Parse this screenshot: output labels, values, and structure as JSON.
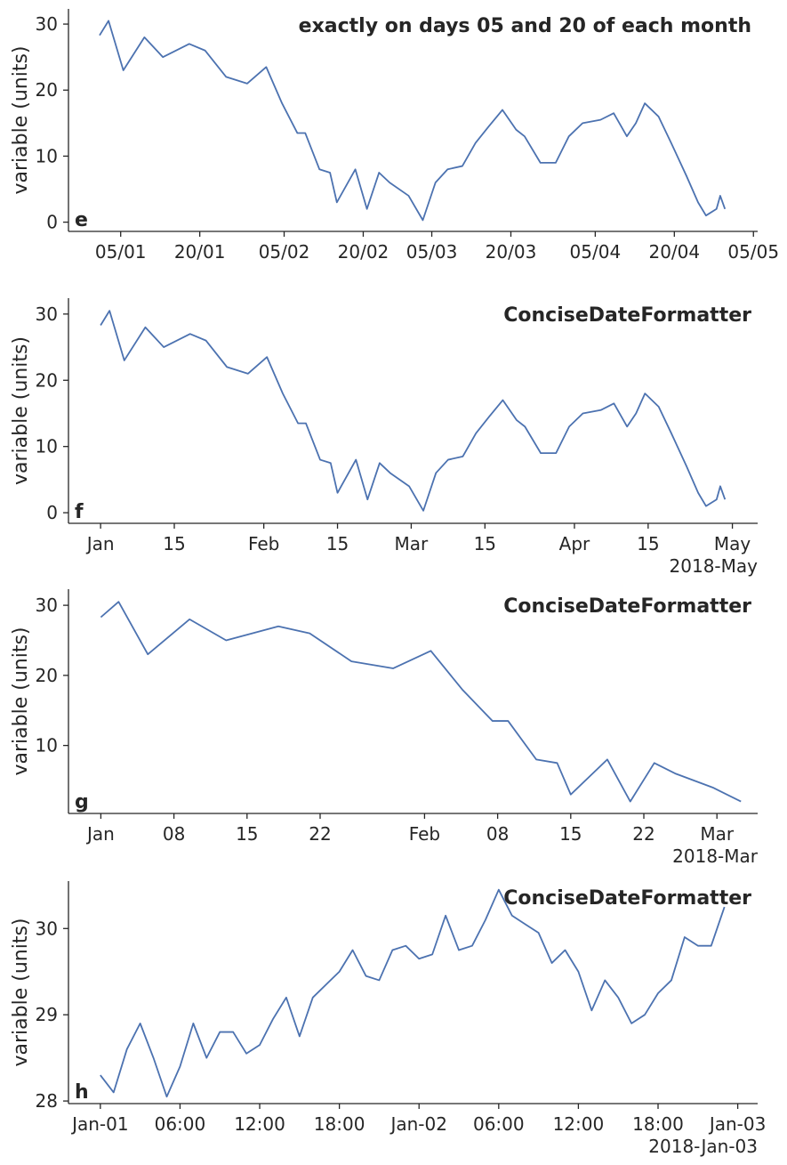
{
  "chart_data": [
    {
      "type": "line",
      "title": "exactly on days 05 and 20 of each month",
      "panel_label": "e",
      "ylabel": "variable (units)",
      "color": "#4c72b0",
      "x": [
        0,
        1.7,
        4.5,
        8.5,
        12,
        17,
        20,
        24,
        28,
        31.6,
        34.6,
        37.5,
        39,
        41.7,
        43.7,
        45,
        48.5,
        50.7,
        53,
        55,
        58.6,
        61.3,
        63.7,
        66,
        68.8,
        71.3,
        73.8,
        76.4,
        79,
        80.6,
        83.6,
        86.5,
        89,
        91.6,
        95,
        97.5,
        100,
        101.7,
        103.4,
        106,
        108.4,
        111.3,
        113.5,
        115,
        117,
        117.7,
        118.6
      ],
      "values": [
        28.3,
        30.5,
        23,
        28,
        25,
        27,
        26,
        22,
        21,
        23.5,
        18,
        13.5,
        13.5,
        8,
        7.5,
        3,
        8,
        2,
        7.5,
        6,
        4,
        0.3,
        6,
        8,
        8.5,
        12,
        14.5,
        17,
        14,
        13,
        9,
        9,
        13,
        15,
        15.5,
        16.5,
        13,
        15,
        18,
        16,
        12,
        7,
        3,
        1,
        2,
        4,
        2
      ],
      "xlim": [
        -5.9,
        124.8
      ],
      "xticks": [
        {
          "value": 4,
          "label": "05/01"
        },
        {
          "value": 19,
          "label": "20/01"
        },
        {
          "value": 35,
          "label": "05/02"
        },
        {
          "value": 50,
          "label": "20/02"
        },
        {
          "value": 63,
          "label": "05/03"
        },
        {
          "value": 78,
          "label": "20/03"
        },
        {
          "value": 94,
          "label": "05/04"
        },
        {
          "value": 109,
          "label": "20/04"
        },
        {
          "value": 124,
          "label": "05/05"
        }
      ],
      "ylim": [
        -1.4,
        32.3
      ],
      "yticks": [
        0,
        10,
        20,
        30
      ]
    },
    {
      "type": "line",
      "title": "ConciseDateFormatter",
      "panel_label": "f",
      "ylabel": "variable (units)",
      "color": "#4c72b0",
      "offset_label": "2018-May",
      "x": [
        0,
        1.7,
        4.5,
        8.5,
        12,
        17,
        20,
        24,
        28,
        31.6,
        34.6,
        37.5,
        39,
        41.7,
        43.7,
        45,
        48.5,
        50.7,
        53,
        55,
        58.6,
        61.3,
        63.7,
        66,
        68.8,
        71.3,
        73.8,
        76.4,
        79,
        80.6,
        83.6,
        86.5,
        89,
        91.6,
        95,
        97.5,
        100,
        101.7,
        103.4,
        106,
        108.4,
        111.3,
        113.5,
        115,
        117,
        117.7,
        118.6
      ],
      "values": [
        28.3,
        30.5,
        23,
        28,
        25,
        27,
        26,
        22,
        21,
        23.5,
        18,
        13.5,
        13.5,
        8,
        7.5,
        3,
        8,
        2,
        7.5,
        6,
        4,
        0.3,
        6,
        8,
        8.5,
        12,
        14.5,
        17,
        14,
        13,
        9,
        9,
        13,
        15,
        15.5,
        16.5,
        13,
        15,
        18,
        16,
        12,
        7,
        3,
        1,
        2,
        4,
        2
      ],
      "xlim": [
        -6.1,
        124.8
      ],
      "xticks": [
        {
          "value": 0,
          "label": "Jan"
        },
        {
          "value": 14,
          "label": "15"
        },
        {
          "value": 31,
          "label": "Feb"
        },
        {
          "value": 45,
          "label": "15"
        },
        {
          "value": 59,
          "label": "Mar"
        },
        {
          "value": 73,
          "label": "15"
        },
        {
          "value": 90,
          "label": "Apr"
        },
        {
          "value": 104,
          "label": "15"
        },
        {
          "value": 120,
          "label": "May"
        }
      ],
      "ylim": [
        -1.6,
        32.4
      ],
      "yticks": [
        0,
        10,
        20,
        30
      ]
    },
    {
      "type": "line",
      "title": "ConciseDateFormatter",
      "panel_label": "g",
      "ylabel": "variable (units)",
      "color": "#4c72b0",
      "offset_label": "2018-Mar",
      "x": [
        0,
        1.7,
        4.5,
        8.5,
        12,
        17,
        20,
        24,
        28,
        31.6,
        34.6,
        37.5,
        39,
        41.7,
        43.7,
        45,
        48.5,
        50.7,
        53,
        55,
        58.6,
        61.3
      ],
      "values": [
        28.3,
        30.5,
        23,
        28,
        25,
        27,
        26,
        22,
        21,
        23.5,
        18,
        13.5,
        13.5,
        8,
        7.5,
        3,
        8,
        2,
        7.5,
        6,
        4,
        2
      ],
      "xlim": [
        -3.1,
        62.9
      ],
      "xticks": [
        {
          "value": 0,
          "label": "Jan"
        },
        {
          "value": 7,
          "label": "08"
        },
        {
          "value": 14,
          "label": "15"
        },
        {
          "value": 21,
          "label": "22"
        },
        {
          "value": 31,
          "label": "Feb"
        },
        {
          "value": 38,
          "label": "08"
        },
        {
          "value": 45,
          "label": "15"
        },
        {
          "value": 52,
          "label": "22"
        },
        {
          "value": 59,
          "label": "Mar"
        }
      ],
      "ylim": [
        0.3,
        32.3
      ],
      "yticks": [
        10,
        20,
        30
      ]
    },
    {
      "type": "line",
      "title": "ConciseDateFormatter",
      "panel_label": "h",
      "ylabel": "variable (units)",
      "color": "#4c72b0",
      "offset_label": "2018-Jan-03",
      "x": [
        0,
        1,
        2,
        3,
        4,
        5,
        6,
        7,
        8,
        9,
        10,
        11,
        12,
        13,
        14,
        15,
        16,
        17,
        18,
        19,
        20,
        21,
        22,
        23,
        24,
        25,
        26,
        27,
        28,
        29,
        30,
        31,
        32,
        33,
        34,
        35,
        36,
        37,
        38,
        39,
        40,
        41,
        42,
        43,
        44,
        45,
        46,
        47
      ],
      "values": [
        28.3,
        28.1,
        28.6,
        28.9,
        28.5,
        28.05,
        28.4,
        28.9,
        28.5,
        28.8,
        28.8,
        28.55,
        28.65,
        28.95,
        29.2,
        28.75,
        29.2,
        29.35,
        29.5,
        29.75,
        29.45,
        29.4,
        29.75,
        29.8,
        29.65,
        29.7,
        30.15,
        29.75,
        29.8,
        30.1,
        30.45,
        30.15,
        30.05,
        29.95,
        29.6,
        29.75,
        29.5,
        29.05,
        29.4,
        29.2,
        28.9,
        29.0,
        29.25,
        29.4,
        29.9,
        29.8,
        29.8,
        30.25
      ],
      "xlim": [
        -2.4,
        49.5
      ],
      "xticks": [
        {
          "value": 0,
          "label": "Jan-01"
        },
        {
          "value": 6,
          "label": "06:00"
        },
        {
          "value": 12,
          "label": "12:00"
        },
        {
          "value": 18,
          "label": "18:00"
        },
        {
          "value": 24,
          "label": "Jan-02"
        },
        {
          "value": 30,
          "label": "06:00"
        },
        {
          "value": 36,
          "label": "12:00"
        },
        {
          "value": 42,
          "label": "18:00"
        },
        {
          "value": 48,
          "label": "Jan-03"
        }
      ],
      "ylim": [
        27.97,
        30.55
      ],
      "yticks": [
        28,
        29,
        30
      ]
    }
  ]
}
